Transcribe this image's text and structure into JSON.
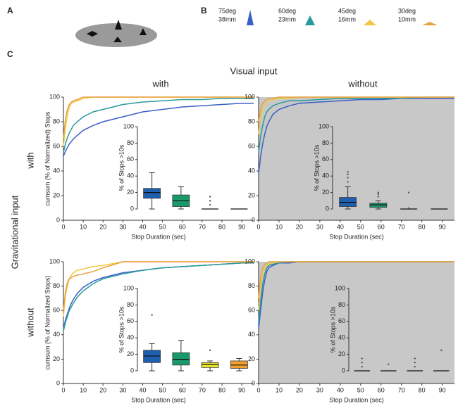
{
  "figure": {
    "panel_labels": [
      "A",
      "B",
      "C"
    ],
    "column_title": "Visual input",
    "columns": [
      "with",
      "without"
    ],
    "row_title": "Gravitational input",
    "rows": [
      "with",
      "without"
    ]
  },
  "chart_data": [
    {
      "type": "line",
      "xlabel": "Stop Duration (sec)",
      "ylabel": "cumsum (% of Normalized) Stops",
      "background": "#ffffff",
      "xlim": [
        0,
        96
      ],
      "xticks": [
        0,
        10,
        20,
        30,
        40,
        50,
        60,
        70,
        80,
        90
      ],
      "ylim": [
        0,
        100
      ],
      "yticks": [
        0,
        20,
        40,
        60,
        80,
        100
      ],
      "x": [
        0,
        1,
        2,
        3,
        4,
        5,
        7,
        10,
        15,
        20,
        30,
        40,
        50,
        60,
        70,
        80,
        90,
        96
      ],
      "series": [
        {
          "name": "75deg",
          "size": "38mm",
          "color": "#3a5fc8",
          "values": [
            52,
            56,
            59,
            62,
            64,
            66,
            69,
            73,
            77,
            80,
            84,
            88,
            90,
            92,
            93,
            94,
            95,
            95
          ]
        },
        {
          "name": "60deg",
          "size": "23mm",
          "color": "#2a9a9a",
          "values": [
            55,
            62,
            67,
            71,
            74,
            77,
            80,
            84,
            88,
            90,
            94,
            96,
            97,
            98,
            98,
            99,
            99,
            99
          ]
        },
        {
          "name": "45deg",
          "size": "16mm",
          "color": "#f0c840",
          "values": [
            60,
            75,
            85,
            92,
            95,
            96,
            97,
            99,
            100,
            100,
            100,
            100,
            100,
            100,
            100,
            100,
            100,
            100
          ]
        },
        {
          "name": "30deg",
          "size": "10mm",
          "color": "#e8a040",
          "values": [
            66,
            82,
            90,
            94,
            96,
            97,
            98,
            100,
            100,
            100,
            100,
            100,
            100,
            100,
            100,
            100,
            100,
            100
          ]
        }
      ]
    },
    {
      "type": "line",
      "xlabel": "Stop Duration (sec)",
      "background": "#c8c8c8",
      "xlim": [
        0,
        96
      ],
      "xticks": [
        0,
        10,
        20,
        30,
        40,
        50,
        60,
        70,
        80,
        90
      ],
      "ylim": [
        0,
        100
      ],
      "yticks": [
        0,
        20,
        40,
        60,
        80,
        100
      ],
      "x": [
        0,
        1,
        2,
        3,
        4,
        5,
        7,
        10,
        15,
        20,
        30,
        40,
        50,
        60,
        70,
        80,
        90,
        96
      ],
      "series": [
        {
          "name": "75deg",
          "color": "#3a5fc8",
          "values": [
            38,
            52,
            62,
            70,
            76,
            80,
            86,
            90,
            93,
            95,
            96,
            97,
            98,
            98,
            99,
            99,
            99,
            99
          ]
        },
        {
          "name": "60deg",
          "color": "#2a9a9a",
          "values": [
            55,
            68,
            77,
            84,
            88,
            90,
            93,
            95,
            97,
            97,
            98,
            99,
            99,
            99,
            99,
            100,
            100,
            100
          ]
        },
        {
          "name": "45deg",
          "color": "#f0c840",
          "values": [
            70,
            84,
            90,
            94,
            96,
            97,
            98,
            99,
            99,
            100,
            100,
            100,
            100,
            100,
            100,
            100,
            100,
            100
          ]
        },
        {
          "name": "30deg",
          "color": "#e8a040",
          "values": [
            80,
            90,
            95,
            97,
            98,
            99,
            99,
            100,
            100,
            100,
            100,
            100,
            100,
            100,
            100,
            100,
            100,
            100
          ]
        }
      ]
    },
    {
      "type": "line",
      "xlabel": "Stop Duration (sec)",
      "ylabel": "cumsum (% of Normalized Stops)",
      "background": "#ffffff",
      "xlim": [
        0,
        96
      ],
      "xticks": [
        0,
        10,
        20,
        30,
        40,
        50,
        60,
        70,
        80,
        90
      ],
      "ylim": [
        0,
        100
      ],
      "yticks": [
        0,
        20,
        40,
        60,
        80,
        100
      ],
      "x": [
        0,
        1,
        2,
        3,
        4,
        5,
        7,
        10,
        15,
        20,
        30,
        40,
        50,
        60,
        70,
        80,
        90,
        96
      ],
      "series": [
        {
          "name": "75deg",
          "color": "#3a5fc8",
          "values": [
            45,
            52,
            57,
            62,
            66,
            69,
            74,
            79,
            84,
            87,
            91,
            93,
            95,
            96,
            97,
            98,
            99,
            99
          ]
        },
        {
          "name": "60deg",
          "color": "#2a9a9a",
          "values": [
            43,
            50,
            55,
            60,
            63,
            66,
            71,
            76,
            82,
            86,
            90,
            93,
            95,
            96,
            97,
            98,
            99,
            99
          ]
        },
        {
          "name": "45deg",
          "color": "#f0c840",
          "values": [
            55,
            72,
            80,
            86,
            89,
            91,
            93,
            94,
            96,
            97,
            100,
            100,
            100,
            100,
            100,
            100,
            100,
            100
          ]
        },
        {
          "name": "30deg",
          "color": "#e8a040",
          "values": [
            60,
            75,
            83,
            86,
            87,
            88,
            89,
            90,
            92,
            95,
            100,
            100,
            100,
            100,
            100,
            100,
            100,
            100
          ]
        }
      ]
    },
    {
      "type": "line",
      "xlabel": "Stop Duration (sec)",
      "background": "#c8c8c8",
      "xlim": [
        0,
        96
      ],
      "xticks": [
        0,
        10,
        20,
        30,
        40,
        50,
        60,
        70,
        80,
        90
      ],
      "ylim": [
        0,
        100
      ],
      "yticks": [
        0,
        20,
        40,
        60,
        80,
        100
      ],
      "x": [
        0,
        1,
        2,
        3,
        4,
        5,
        7,
        10,
        15,
        20,
        30,
        40,
        50,
        60,
        70,
        80,
        90,
        96
      ],
      "series": [
        {
          "name": "75deg",
          "color": "#3a5fc8",
          "values": [
            45,
            60,
            75,
            85,
            92,
            95,
            97,
            99,
            99,
            100,
            100,
            100,
            100,
            100,
            100,
            100,
            100,
            100
          ]
        },
        {
          "name": "60deg",
          "color": "#2a9a9a",
          "values": [
            50,
            68,
            82,
            90,
            95,
            97,
            98,
            99,
            100,
            100,
            100,
            100,
            100,
            100,
            100,
            100,
            100,
            100
          ]
        },
        {
          "name": "45deg",
          "color": "#f0c840",
          "values": [
            60,
            80,
            90,
            95,
            97,
            98,
            99,
            100,
            100,
            100,
            100,
            100,
            100,
            100,
            100,
            100,
            100,
            100
          ]
        },
        {
          "name": "30deg",
          "color": "#e8a040",
          "values": [
            70,
            88,
            95,
            98,
            99,
            100,
            100,
            100,
            100,
            100,
            100,
            100,
            100,
            100,
            100,
            100,
            100,
            100
          ]
        }
      ]
    },
    {
      "type": "box",
      "ylabel": "% of Stops >10s",
      "ylim": [
        0,
        100
      ],
      "yticks": [
        0,
        20,
        40,
        60,
        80,
        100
      ],
      "series": [
        {
          "color": "#1f5fb0",
          "whislo": 0,
          "q1": 13,
          "med": 20,
          "q3": 25,
          "whishi": 44,
          "fliers": []
        },
        {
          "color": "#1a9a6a",
          "whislo": 0,
          "q1": 3,
          "med": 10,
          "q3": 17,
          "whishi": 27,
          "fliers": []
        },
        {
          "color": "#e8e830",
          "whislo": 0,
          "q1": 0,
          "med": 0,
          "q3": 0,
          "whishi": 0,
          "fliers": [
            5,
            10,
            15
          ]
        },
        {
          "color": "#f0a030",
          "whislo": 0,
          "q1": 0,
          "med": 0,
          "q3": 0,
          "whishi": 0,
          "fliers": []
        }
      ]
    },
    {
      "type": "box",
      "ylabel": "% of Stops >10s",
      "ylim": [
        0,
        100
      ],
      "yticks": [
        0,
        20,
        40,
        60,
        80,
        100
      ],
      "series": [
        {
          "color": "#1f5fb0",
          "whislo": 0,
          "q1": 3,
          "med": 8,
          "q3": 14,
          "whishi": 27,
          "fliers": [
            33,
            38,
            42,
            45
          ]
        },
        {
          "color": "#1a9a6a",
          "whislo": 0,
          "q1": 2,
          "med": 5,
          "q3": 7,
          "whishi": 10,
          "fliers": [
            15,
            18,
            20
          ]
        },
        {
          "color": "#e8e830",
          "whislo": 0,
          "q1": 0,
          "med": 0,
          "q3": 0,
          "whishi": 0,
          "fliers": [
            1,
            20
          ]
        },
        {
          "color": "#f0a030",
          "whislo": 0,
          "q1": 0,
          "med": 0,
          "q3": 0,
          "whishi": 0,
          "fliers": []
        }
      ]
    },
    {
      "type": "box",
      "ylabel": "% of Stops >10s",
      "ylim": [
        0,
        100
      ],
      "yticks": [
        0,
        20,
        40,
        60,
        80,
        100
      ],
      "series": [
        {
          "color": "#1f5fb0",
          "whislo": 0,
          "q1": 10,
          "med": 18,
          "q3": 25,
          "whishi": 33,
          "fliers": [
            68
          ]
        },
        {
          "color": "#1a9a6a",
          "whislo": 0,
          "q1": 7,
          "med": 14,
          "q3": 22,
          "whishi": 37,
          "fliers": []
        },
        {
          "color": "#e8e830",
          "whislo": 0,
          "q1": 4,
          "med": 8,
          "q3": 10,
          "whishi": 12,
          "fliers": [
            25
          ]
        },
        {
          "color": "#f0a030",
          "whislo": 0,
          "q1": 3,
          "med": 7,
          "q3": 12,
          "whishi": 15,
          "fliers": []
        }
      ]
    },
    {
      "type": "box",
      "ylabel": "% of Stops >10s",
      "ylim": [
        0,
        100
      ],
      "yticks": [
        0,
        20,
        40,
        60,
        80,
        100
      ],
      "series": [
        {
          "color": "#1f5fb0",
          "whislo": 0,
          "q1": 0,
          "med": 0,
          "q3": 0,
          "whishi": 0,
          "fliers": [
            5,
            10,
            15
          ]
        },
        {
          "color": "#1a9a6a",
          "whislo": 0,
          "q1": 0,
          "med": 0,
          "q3": 0,
          "whishi": 0,
          "fliers": [
            8
          ]
        },
        {
          "color": "#e8e830",
          "whislo": 0,
          "q1": 0,
          "med": 0,
          "q3": 0,
          "whishi": 0,
          "fliers": [
            5,
            10,
            15
          ]
        },
        {
          "color": "#f0a030",
          "whislo": 0,
          "q1": 0,
          "med": 0,
          "q3": 0,
          "whishi": 0,
          "fliers": [
            25
          ]
        }
      ]
    }
  ]
}
